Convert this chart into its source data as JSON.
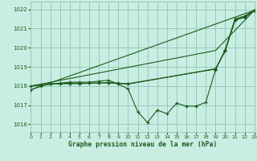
{
  "title": "Graphe pression niveau de la mer (hPa)",
  "bg_color": "#c8eee4",
  "grid_color": "#98c8b8",
  "line_color": "#1a5c1a",
  "xlim": [
    0,
    23
  ],
  "ylim": [
    1015.6,
    1022.4
  ],
  "yticks": [
    1016,
    1017,
    1018,
    1019,
    1020,
    1021,
    1022
  ],
  "xticks": [
    0,
    1,
    2,
    3,
    4,
    5,
    6,
    7,
    8,
    9,
    10,
    11,
    12,
    13,
    14,
    15,
    16,
    17,
    18,
    19,
    20,
    21,
    22,
    23
  ],
  "series_main_x": [
    0,
    1,
    2,
    3,
    4,
    5,
    6,
    7,
    8,
    9,
    10,
    11,
    12,
    13,
    14,
    15,
    16,
    17,
    18,
    19,
    20,
    21,
    22,
    23
  ],
  "series_main_y": [
    1017.8,
    1018.0,
    1018.1,
    1018.15,
    1018.2,
    1018.2,
    1018.2,
    1018.25,
    1018.3,
    1018.1,
    1017.85,
    1016.65,
    1016.1,
    1016.75,
    1016.55,
    1017.1,
    1016.95,
    1016.95,
    1017.15,
    1018.85,
    1019.9,
    1021.5,
    1021.65,
    1021.95
  ],
  "series_line1_x": [
    0,
    23
  ],
  "series_line1_y": [
    1017.8,
    1021.95
  ],
  "series_line2_x": [
    0,
    19,
    23
  ],
  "series_line2_y": [
    1018.0,
    1019.85,
    1021.95
  ],
  "series_smooth1_x": [
    0,
    1,
    2,
    3,
    4,
    5,
    6,
    7,
    8,
    9,
    10,
    19,
    20,
    21,
    22,
    23
  ],
  "series_smooth1_y": [
    1018.0,
    1018.05,
    1018.1,
    1018.12,
    1018.13,
    1018.13,
    1018.14,
    1018.15,
    1018.16,
    1018.13,
    1018.1,
    1018.9,
    1019.85,
    1021.45,
    1021.6,
    1021.95
  ],
  "series_smooth2_x": [
    0,
    1,
    2,
    3,
    4,
    5,
    6,
    7,
    8,
    9,
    10,
    19,
    20,
    21,
    22,
    23
  ],
  "series_smooth2_y": [
    1018.0,
    1018.05,
    1018.1,
    1018.12,
    1018.13,
    1018.13,
    1018.14,
    1018.16,
    1018.18,
    1018.15,
    1018.12,
    1018.88,
    1019.83,
    1021.43,
    1021.58,
    1021.93
  ]
}
